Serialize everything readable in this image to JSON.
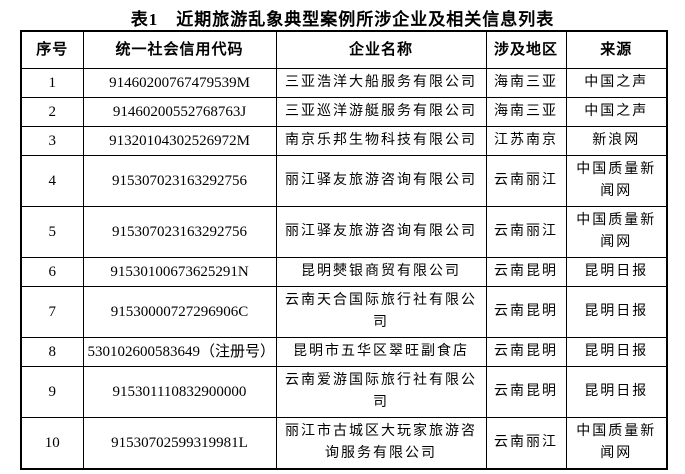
{
  "title": "表1　近期旅游乱象典型案例所涉企业及相关信息列表",
  "table": {
    "headers": [
      "序号",
      "统一社会信用代码",
      "企业名称",
      "涉及地区",
      "来源"
    ],
    "column_keys": [
      "no",
      "code",
      "name",
      "region",
      "source"
    ],
    "rows": [
      {
        "no": "1",
        "code": "91460200767479539M",
        "name": "三亚浩洋大船服务有限公司",
        "region": "海南三亚",
        "source": "中国之声"
      },
      {
        "no": "2",
        "code": "91460200552768763J",
        "name": "三亚巡洋游艇服务有限公司",
        "region": "海南三亚",
        "source": "中国之声"
      },
      {
        "no": "3",
        "code": "91320104302526972M",
        "name": "南京乐邦生物科技有限公司",
        "region": "江苏南京",
        "source": "新浪网"
      },
      {
        "no": "4",
        "code": "915307023163292756",
        "name": "丽江驿友旅游咨询有限公司",
        "region": "云南丽江",
        "source": "中国质量新闻网"
      },
      {
        "no": "5",
        "code": "915307023163292756",
        "name": "丽江驿友旅游咨询有限公司",
        "region": "云南丽江",
        "source": "中国质量新闻网"
      },
      {
        "no": "6",
        "code": "91530100673625291N",
        "name": "昆明僰银商贸有限公司",
        "region": "云南昆明",
        "source": "昆明日报"
      },
      {
        "no": "7",
        "code": "91530000727296906C",
        "name": "云南天合国际旅行社有限公司",
        "region": "云南昆明",
        "source": "昆明日报"
      },
      {
        "no": "8",
        "code": "530102600583649（注册号）",
        "name": "昆明市五华区翠旺副食店",
        "region": "云南昆明",
        "source": "昆明日报"
      },
      {
        "no": "9",
        "code": "915301110832900000",
        "name": "云南爱游国际旅行社有限公司",
        "region": "云南昆明",
        "source": "昆明日报"
      },
      {
        "no": "10",
        "code": "91530702599319981L",
        "name": "丽江市古城区大玩家旅游咨询服务有限公司",
        "region": "云南丽江",
        "source": "中国质量新闻网"
      }
    ]
  }
}
